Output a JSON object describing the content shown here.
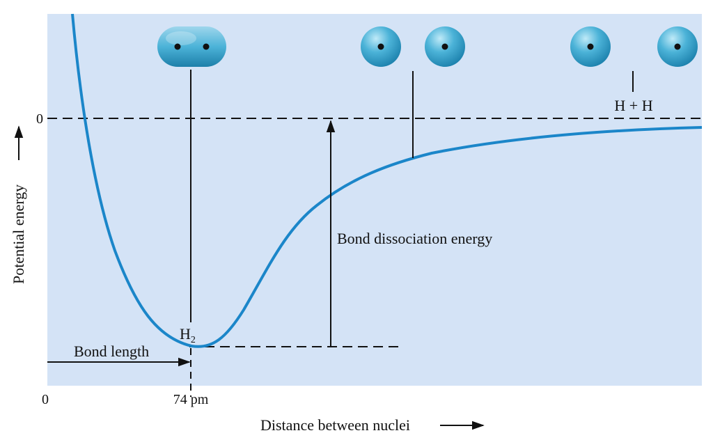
{
  "diagram": {
    "y_axis": {
      "label": "Potential energy",
      "arrow": "⟶",
      "zero_label": "0"
    },
    "x_axis": {
      "label": "Distance between nuclei",
      "arrow": "⟶",
      "origin_label": "0",
      "tick_label": "74 pm"
    },
    "labels": {
      "molecule": "H",
      "molecule_subscript": "2",
      "separated_atoms": "H + H",
      "bond_length": "Bond length",
      "bond_dissociation": "Bond dissociation energy"
    },
    "colors": {
      "plot_background": "#d4e3f6",
      "curve": "#1b86c9",
      "atom": "#4cb3d8",
      "lines": "#111111"
    },
    "icons": [
      "h2-molecule-icon",
      "h-atom-pair-near-icon",
      "h-atom-pair-far-icon"
    ]
  }
}
